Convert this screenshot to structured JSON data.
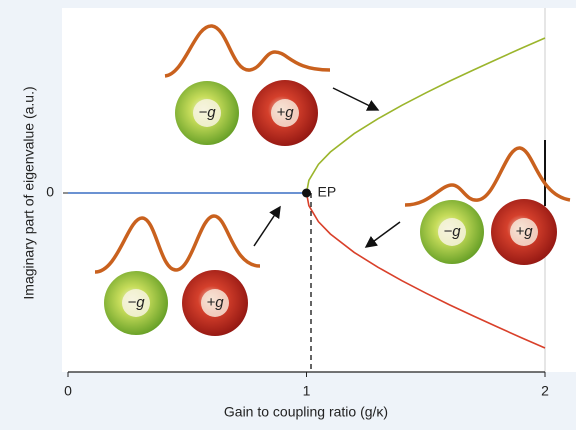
{
  "chart_data": {
    "type": "line",
    "xlabel": "Gain to coupling ratio (g/κ)",
    "ylabel": "Imaginary part of eigenvalue (a.u.)",
    "xlim": [
      0,
      2
    ],
    "xticks": [
      0,
      1,
      2
    ],
    "ylim": [
      -1,
      1
    ],
    "yticks": [
      0
    ],
    "series": [
      {
        "color": "#3a6fc4",
        "x": [
          0,
          1
        ],
        "values": [
          0,
          0
        ]
      },
      {
        "color": "#9bb52c",
        "x": [
          1,
          1.01,
          1.05,
          1.1,
          1.2,
          1.3,
          1.4,
          1.5,
          1.6,
          1.7,
          1.8,
          1.9,
          2
        ],
        "values": [
          0,
          0.071,
          0.16,
          0.229,
          0.332,
          0.415,
          0.49,
          0.559,
          0.625,
          0.687,
          0.748,
          0.808,
          0.866
        ]
      },
      {
        "color": "#d9402a",
        "x": [
          1,
          1.01,
          1.05,
          1.1,
          1.2,
          1.3,
          1.4,
          1.5,
          1.6,
          1.7,
          1.8,
          1.9,
          2
        ],
        "values": [
          0,
          -0.071,
          -0.16,
          -0.229,
          -0.332,
          -0.415,
          -0.49,
          -0.559,
          -0.625,
          -0.687,
          -0.748,
          -0.808,
          -0.866
        ]
      }
    ],
    "annotations": [
      "EP"
    ],
    "sphere_labels": [
      [
        "−g",
        "+g"
      ],
      [
        "−g",
        "+g"
      ],
      [
        "−g",
        "+g"
      ]
    ]
  }
}
